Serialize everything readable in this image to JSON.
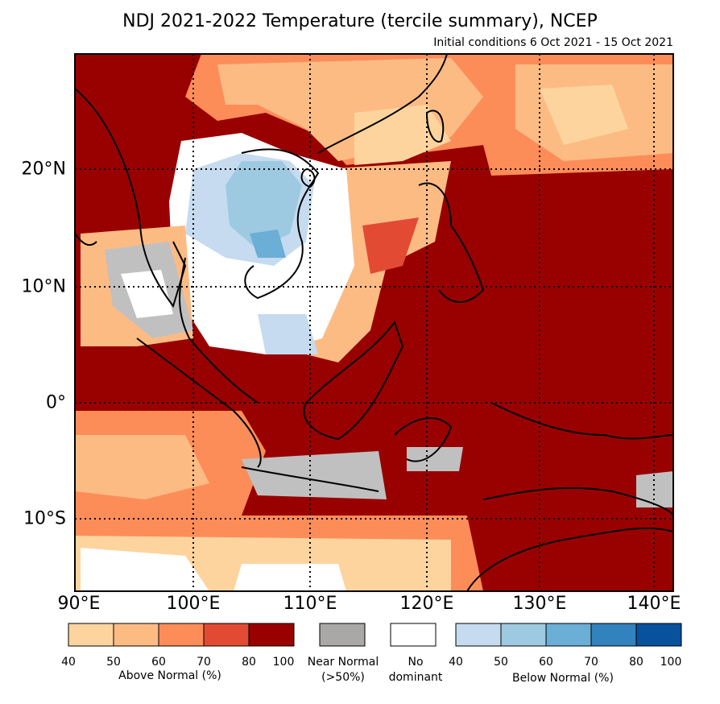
{
  "title": "NDJ 2021-2022 Temperature (tercile summary), NCEP",
  "subtitle": "Initial conditions 6 Oct 2021 - 15 Oct 2021",
  "lon_labels": [
    "90°E",
    "100°E",
    "110°E",
    "120°E",
    "130°E",
    "140°E"
  ],
  "lat_labels": [
    "20°N",
    "10°N",
    "0°",
    "10°S"
  ],
  "colors": {
    "above": [
      "#fdd49e",
      "#fdbb84",
      "#fc8d59",
      "#e34a33",
      "#990000"
    ],
    "near_normal": "#c0c0c0",
    "no_dominant": "#ffffff",
    "below": [
      "#c6dbef",
      "#9ecae1",
      "#6baed6",
      "#3182bd",
      "#08519c"
    ]
  },
  "legend": {
    "above": {
      "label": "Above Normal (%)",
      "ticks": [
        "40",
        "50",
        "60",
        "70",
        "80",
        "100"
      ]
    },
    "near_normal": {
      "label_line1": "Near Normal",
      "label_line2": "(>50%)"
    },
    "no_dominant": {
      "label_line1": "No",
      "label_line2": "dominant"
    },
    "below": {
      "label": "Below Normal (%)",
      "ticks": [
        "40",
        "50",
        "60",
        "70",
        "80",
        "100"
      ]
    }
  }
}
